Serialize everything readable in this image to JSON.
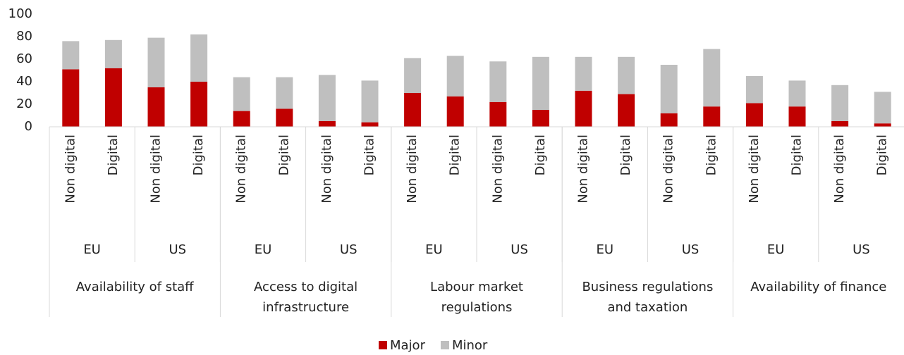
{
  "chart_data": {
    "type": "stacked_bar",
    "categories": [
      "Non digital",
      "Digital",
      "Non digital",
      "Digital",
      "Non digital",
      "Digital",
      "Non digital",
      "Digital",
      "Non digital",
      "Digital",
      "Non digital",
      "Digital",
      "Non digital",
      "Digital",
      "Non digital",
      "Digital",
      "Non digital",
      "Digital",
      "Non digital",
      "Digital"
    ],
    "regions": [
      "EU",
      "US",
      "EU",
      "US",
      "EU",
      "US",
      "EU",
      "US",
      "EU",
      "US"
    ],
    "groups": [
      [
        "Availability of staff"
      ],
      [
        "Access to digital",
        "infrastructure"
      ],
      [
        "Labour market",
        "regulations"
      ],
      [
        "Business regulations",
        "and taxation"
      ],
      [
        "Availability of finance"
      ]
    ],
    "series": [
      {
        "name": "Major",
        "color": "#c00000",
        "values": [
          51,
          52,
          35,
          40,
          14,
          16,
          5,
          4,
          30,
          27,
          22,
          15,
          32,
          29,
          12,
          18,
          21,
          18,
          5,
          3
        ]
      },
      {
        "name": "Minor",
        "color": "#bfbfbf",
        "values": [
          25,
          25,
          44,
          42,
          30,
          28,
          41,
          37,
          31,
          36,
          36,
          47,
          30,
          33,
          43,
          51,
          24,
          23,
          32,
          28
        ]
      }
    ],
    "ylim": [
      0,
      100
    ],
    "yticks": [
      0,
      20,
      40,
      60,
      80,
      100
    ],
    "legend": "bottom"
  }
}
